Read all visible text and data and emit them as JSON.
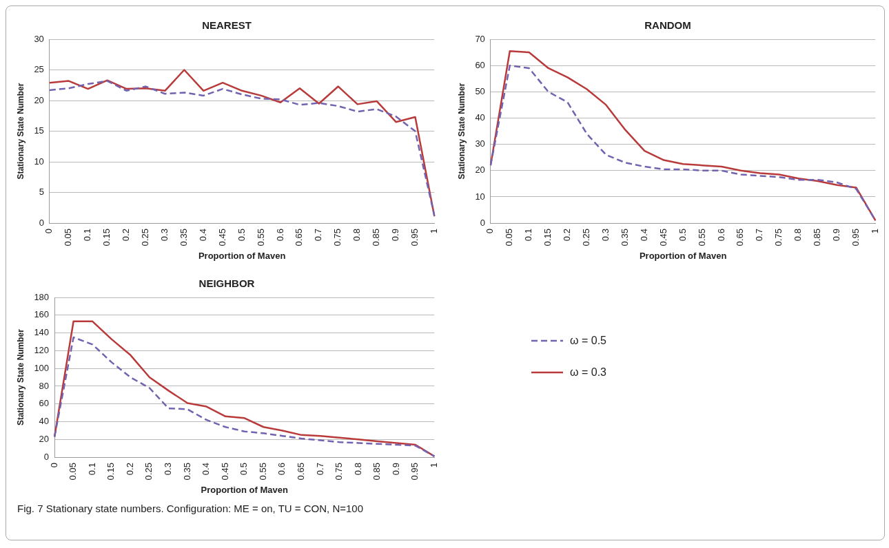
{
  "chart_data": [
    {
      "type": "line",
      "title": "NEAREST",
      "xlabel": "Proportion of Maven",
      "ylabel": "Stationary State Number",
      "categories": [
        "0",
        "0.05",
        "0.1",
        "0.15",
        "0.2",
        "0.25",
        "0.3",
        "0.35",
        "0.4",
        "0.45",
        "0.5",
        "0.55",
        "0.6",
        "0.65",
        "0.7",
        "0.75",
        "0.8",
        "0.85",
        "0.9",
        "0.95",
        "1"
      ],
      "ylim": [
        0,
        30
      ],
      "yticks": [
        0,
        5,
        10,
        15,
        20,
        25,
        30
      ],
      "grid": "y",
      "marker": "none",
      "series": [
        {
          "color": "#7262b0",
          "line_style": "dashed",
          "values": [
            21.7,
            22,
            22.7,
            23.2,
            21.6,
            22.3,
            21.1,
            21.3,
            20.8,
            21.9,
            21,
            20.3,
            20.2,
            19.3,
            19.6,
            19.1,
            18.2,
            18.6,
            17.4,
            15,
            1.2
          ]
        },
        {
          "color": "#b93a3a",
          "line_style": "solid",
          "values": [
            22.9,
            23.2,
            21.9,
            23.3,
            21.9,
            22,
            21.6,
            25,
            21.6,
            22.9,
            21.6,
            20.8,
            19.7,
            22,
            19.5,
            22.3,
            19.4,
            19.9,
            16.5,
            17.3,
            1.1
          ]
        }
      ]
    },
    {
      "type": "line",
      "title": "RANDOM",
      "xlabel": "Proportion of Maven",
      "ylabel": "Stationary State Number",
      "categories": [
        "0",
        "0.05",
        "0.1",
        "0.15",
        "0.2",
        "0.25",
        "0.3",
        "0.35",
        "0.4",
        "0.45",
        "0.5",
        "0.55",
        "0.6",
        "0.65",
        "0.7",
        "0.75",
        "0.8",
        "0.85",
        "0.9",
        "0.95",
        "1"
      ],
      "ylim": [
        0,
        70
      ],
      "yticks": [
        0,
        10,
        20,
        30,
        40,
        50,
        60,
        70
      ],
      "grid": "y",
      "marker": "none",
      "series": [
        {
          "color": "#7262b0",
          "line_style": "dashed",
          "values": [
            22,
            60,
            59,
            50,
            46,
            34,
            26,
            23,
            21.5,
            20.5,
            20.5,
            20,
            20,
            18.5,
            18,
            17.5,
            16.5,
            16.5,
            15.5,
            13,
            1
          ]
        },
        {
          "color": "#b93a3a",
          "line_style": "solid",
          "values": [
            22,
            65.5,
            65,
            59,
            55.5,
            51,
            45,
            35.5,
            27.5,
            24,
            22.5,
            22,
            21.5,
            20,
            19,
            18.5,
            17,
            16,
            14.5,
            13.5,
            1
          ]
        }
      ]
    },
    {
      "type": "line",
      "title": "NEIGHBOR",
      "xlabel": "Proportion of Maven",
      "ylabel": "Stationary State Number",
      "categories": [
        "0",
        "0.05",
        "0.1",
        "0.15",
        "0.2",
        "0.25",
        "0.3",
        "0.35",
        "0.4",
        "0.45",
        "0.5",
        "0.55",
        "0.6",
        "0.65",
        "0.7",
        "0.75",
        "0.8",
        "0.85",
        "0.9",
        "0.95",
        "1"
      ],
      "ylim": [
        0,
        180
      ],
      "yticks": [
        0,
        20,
        40,
        60,
        80,
        100,
        120,
        140,
        160,
        180
      ],
      "grid": "y",
      "marker": "none",
      "legend": "right",
      "annotations": [
        "Fig. 7 Stationary state numbers. Configuration: ME = on, TU = CON, N=100"
      ],
      "series": [
        {
          "name": "ω = 0.5",
          "color": "#7262b0",
          "line_style": "dashed",
          "values": [
            23,
            135,
            127,
            107,
            90,
            78,
            55,
            54,
            42,
            34,
            29,
            27,
            24,
            21,
            19,
            17,
            16,
            15,
            14,
            13,
            1
          ]
        },
        {
          "name": "ω = 0.3",
          "color": "#b93a3a",
          "line_style": "solid",
          "values": [
            23,
            153,
            153,
            133,
            115,
            90,
            75,
            61,
            57,
            46,
            44,
            34,
            30,
            25,
            24,
            22,
            20,
            18,
            16,
            14,
            1
          ]
        }
      ]
    }
  ]
}
